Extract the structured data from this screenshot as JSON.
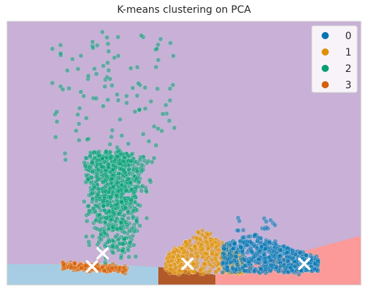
{
  "chart_data": {
    "type": "scatter",
    "title": "K-means clustering on PCA",
    "xlabel": "",
    "ylabel": "",
    "grid": false,
    "legend": {
      "placement": "top-right",
      "marker": "circle"
    },
    "colors": {
      "region_purple": "#c8b0d6",
      "region_blue": "#a6cde3",
      "region_salmon": "#fb9a99",
      "region_brown": "#b15928",
      "centroid": "#ffffff",
      "frame": "#cccccc"
    },
    "series": [
      {
        "name": "0",
        "color": "#0173b2"
      },
      {
        "name": "1",
        "color": "#de8f05"
      },
      {
        "name": "2",
        "color": "#029e73"
      },
      {
        "name": "3",
        "color": "#d55e00"
      }
    ],
    "centroids": [
      {
        "cluster": "0",
        "x": 0.84,
        "y": 0.08
      },
      {
        "cluster": "1",
        "x": 0.51,
        "y": 0.08
      },
      {
        "cluster": "2",
        "x": 0.27,
        "y": 0.12
      },
      {
        "cluster": "3",
        "x": 0.24,
        "y": 0.07
      }
    ]
  }
}
